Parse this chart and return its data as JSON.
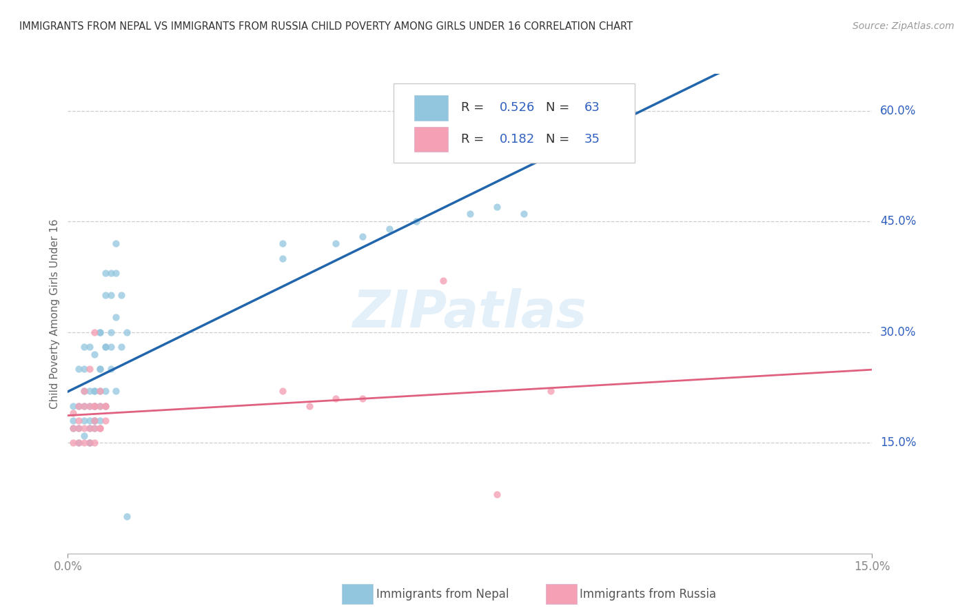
{
  "title": "IMMIGRANTS FROM NEPAL VS IMMIGRANTS FROM RUSSIA CHILD POVERTY AMONG GIRLS UNDER 16 CORRELATION CHART",
  "source": "Source: ZipAtlas.com",
  "ylabel": "Child Poverty Among Girls Under 16",
  "xlim": [
    0.0,
    0.15
  ],
  "ylim": [
    0.0,
    0.65
  ],
  "ytick_labels_right": [
    [
      0.6,
      "60.0%"
    ],
    [
      0.45,
      "45.0%"
    ],
    [
      0.3,
      "30.0%"
    ],
    [
      0.15,
      "15.0%"
    ]
  ],
  "nepal_color": "#92c5de",
  "russia_color": "#f4a0b5",
  "nepal_line_color": "#2166ac",
  "russia_line_color": "#e06080",
  "nepal_R": 0.526,
  "nepal_N": 63,
  "russia_R": 0.182,
  "russia_N": 35,
  "watermark": "ZIPatlas",
  "legend_color": "#3060c0",
  "nepal_scatter": [
    [
      0.001,
      0.18
    ],
    [
      0.001,
      0.2
    ],
    [
      0.001,
      0.17
    ],
    [
      0.002,
      0.2
    ],
    [
      0.002,
      0.15
    ],
    [
      0.002,
      0.17
    ],
    [
      0.002,
      0.25
    ],
    [
      0.003,
      0.28
    ],
    [
      0.003,
      0.16
    ],
    [
      0.003,
      0.18
    ],
    [
      0.003,
      0.2
    ],
    [
      0.003,
      0.22
    ],
    [
      0.003,
      0.25
    ],
    [
      0.004,
      0.15
    ],
    [
      0.004,
      0.18
    ],
    [
      0.004,
      0.2
    ],
    [
      0.004,
      0.22
    ],
    [
      0.004,
      0.28
    ],
    [
      0.004,
      0.15
    ],
    [
      0.004,
      0.17
    ],
    [
      0.005,
      0.18
    ],
    [
      0.005,
      0.2
    ],
    [
      0.005,
      0.22
    ],
    [
      0.005,
      0.27
    ],
    [
      0.005,
      0.17
    ],
    [
      0.005,
      0.18
    ],
    [
      0.005,
      0.2
    ],
    [
      0.005,
      0.22
    ],
    [
      0.006,
      0.25
    ],
    [
      0.006,
      0.3
    ],
    [
      0.006,
      0.18
    ],
    [
      0.006,
      0.2
    ],
    [
      0.006,
      0.22
    ],
    [
      0.006,
      0.25
    ],
    [
      0.006,
      0.3
    ],
    [
      0.007,
      0.2
    ],
    [
      0.007,
      0.22
    ],
    [
      0.007,
      0.28
    ],
    [
      0.007,
      0.35
    ],
    [
      0.007,
      0.38
    ],
    [
      0.007,
      0.28
    ],
    [
      0.008,
      0.38
    ],
    [
      0.008,
      0.28
    ],
    [
      0.008,
      0.3
    ],
    [
      0.008,
      0.35
    ],
    [
      0.008,
      0.25
    ],
    [
      0.009,
      0.32
    ],
    [
      0.009,
      0.38
    ],
    [
      0.009,
      0.22
    ],
    [
      0.009,
      0.42
    ],
    [
      0.01,
      0.28
    ],
    [
      0.01,
      0.35
    ],
    [
      0.011,
      0.05
    ],
    [
      0.011,
      0.3
    ],
    [
      0.04,
      0.4
    ],
    [
      0.04,
      0.42
    ],
    [
      0.05,
      0.42
    ],
    [
      0.055,
      0.43
    ],
    [
      0.06,
      0.44
    ],
    [
      0.065,
      0.45
    ],
    [
      0.075,
      0.46
    ],
    [
      0.08,
      0.47
    ],
    [
      0.085,
      0.46
    ]
  ],
  "russia_scatter": [
    [
      0.001,
      0.17
    ],
    [
      0.001,
      0.19
    ],
    [
      0.001,
      0.15
    ],
    [
      0.002,
      0.18
    ],
    [
      0.002,
      0.15
    ],
    [
      0.002,
      0.17
    ],
    [
      0.002,
      0.2
    ],
    [
      0.003,
      0.15
    ],
    [
      0.003,
      0.17
    ],
    [
      0.003,
      0.2
    ],
    [
      0.003,
      0.22
    ],
    [
      0.004,
      0.15
    ],
    [
      0.004,
      0.17
    ],
    [
      0.004,
      0.2
    ],
    [
      0.004,
      0.25
    ],
    [
      0.005,
      0.15
    ],
    [
      0.005,
      0.18
    ],
    [
      0.005,
      0.2
    ],
    [
      0.005,
      0.3
    ],
    [
      0.005,
      0.17
    ],
    [
      0.005,
      0.2
    ],
    [
      0.006,
      0.17
    ],
    [
      0.006,
      0.2
    ],
    [
      0.006,
      0.22
    ],
    [
      0.006,
      0.17
    ],
    [
      0.007,
      0.2
    ],
    [
      0.007,
      0.18
    ],
    [
      0.007,
      0.2
    ],
    [
      0.04,
      0.22
    ],
    [
      0.045,
      0.2
    ],
    [
      0.05,
      0.21
    ],
    [
      0.055,
      0.21
    ],
    [
      0.07,
      0.37
    ],
    [
      0.09,
      0.22
    ],
    [
      0.08,
      0.08
    ]
  ],
  "background_color": "#ffffff",
  "grid_color": "#cccccc"
}
